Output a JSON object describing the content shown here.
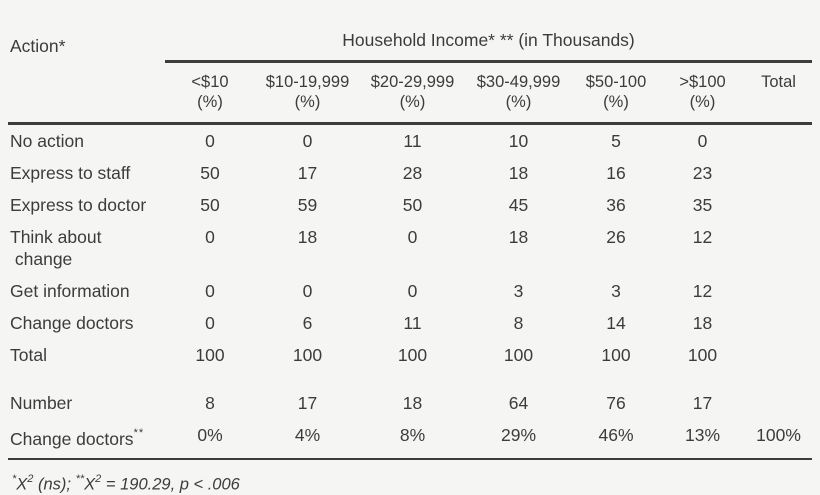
{
  "page": {
    "background": "#f5f5f3",
    "text_color": "#3c3c3c",
    "rule_color": "#3d3d3d"
  },
  "table": {
    "corner_label": "Action*",
    "group_header": "Household Income* ** (in Thousands)",
    "columns": [
      {
        "range": "<$10",
        "unit": "(%)"
      },
      {
        "range": "$10-19,999",
        "unit": "(%)"
      },
      {
        "range": "$20-29,999",
        "unit": "(%)"
      },
      {
        "range": "$30-49,999",
        "unit": "(%)"
      },
      {
        "range": "$50-100",
        "unit": "(%)"
      },
      {
        "range": ">$100",
        "unit": "(%)"
      }
    ],
    "total_header": "Total",
    "rows": [
      {
        "label": "No action",
        "values": [
          "0",
          "0",
          "11",
          "10",
          "5",
          "0"
        ],
        "total": ""
      },
      {
        "label": "Express to staff",
        "values": [
          "50",
          "17",
          "28",
          "18",
          "16",
          "23"
        ],
        "total": ""
      },
      {
        "label": "Express to doctor",
        "values": [
          "50",
          "59",
          "50",
          "45",
          "36",
          "35"
        ],
        "total": ""
      },
      {
        "label": "Think about\n change",
        "values": [
          "0",
          "18",
          "0",
          "18",
          "26",
          "12"
        ],
        "total": ""
      },
      {
        "label": "Get information",
        "values": [
          "0",
          "0",
          "0",
          "3",
          "3",
          "12"
        ],
        "total": ""
      },
      {
        "label": "Change doctors",
        "values": [
          "0",
          "6",
          "11",
          "8",
          "14",
          "18"
        ],
        "total": ""
      },
      {
        "label": "Total",
        "values": [
          "100",
          "100",
          "100",
          "100",
          "100",
          "100"
        ],
        "total": ""
      }
    ],
    "summary_rows": [
      {
        "label": "Number",
        "superscript": "",
        "values": [
          "8",
          "17",
          "18",
          "64",
          "76",
          "17"
        ],
        "total": ""
      },
      {
        "label": "Change doctors",
        "superscript": "**",
        "values": [
          "0%",
          "4%",
          "8%",
          "29%",
          "46%",
          "13%"
        ],
        "total": "100%"
      }
    ],
    "footnote": {
      "star1": "*",
      "chi1": "X",
      "sup1": "2",
      "seg1": " (ns); ",
      "star2": "**",
      "chi2": "X",
      "sup2": "2",
      "seg2": " = 190.29, p < .006"
    }
  }
}
